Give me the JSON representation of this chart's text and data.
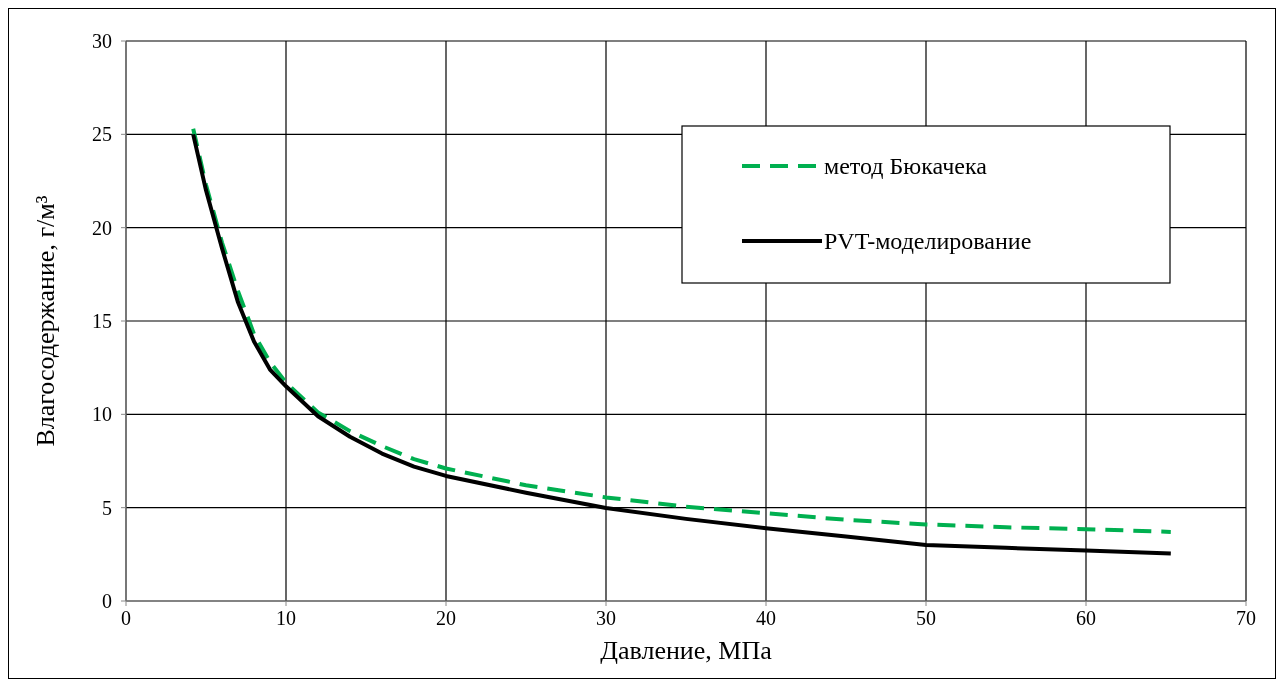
{
  "chart_data": {
    "type": "line",
    "xlabel": "Давление, МПа",
    "ylabel": "Влагосодержание, г/м³",
    "xlim": [
      0,
      70
    ],
    "xticks": [
      0,
      10,
      20,
      30,
      40,
      50,
      60,
      70
    ],
    "ylim": [
      0,
      30
    ],
    "yticks": [
      0,
      5,
      10,
      15,
      20,
      25,
      30
    ],
    "grid": true,
    "legend": "top right",
    "marker": "none",
    "series": [
      {
        "name": "метод Бюкачека",
        "color": "#00b050",
        "line_style": "dashed",
        "x": [
          4.2,
          5,
          6,
          7,
          8,
          9,
          10,
          12,
          14,
          16,
          18,
          20,
          25,
          30,
          35,
          40,
          45,
          50,
          55,
          60,
          65.3
        ],
        "values": [
          25.3,
          22.3,
          19.2,
          16.6,
          14.3,
          12.8,
          11.7,
          10.1,
          9.1,
          8.3,
          7.6,
          7.1,
          6.2,
          5.55,
          5.05,
          4.7,
          4.35,
          4.1,
          3.95,
          3.85,
          3.7
        ]
      },
      {
        "name": "PVT-моделирование",
        "color": "#000000",
        "line_style": "solid",
        "x": [
          4.2,
          5,
          6,
          7,
          8,
          9,
          10,
          12,
          14,
          16,
          18,
          20,
          25,
          30,
          35,
          40,
          45,
          50,
          55,
          60,
          65.3
        ],
        "values": [
          25,
          22,
          18.9,
          16,
          13.9,
          12.4,
          11.5,
          9.9,
          8.8,
          7.9,
          7.2,
          6.7,
          5.8,
          4.98,
          4.4,
          3.9,
          3.45,
          3.0,
          2.85,
          2.7,
          2.55
        ]
      }
    ]
  }
}
